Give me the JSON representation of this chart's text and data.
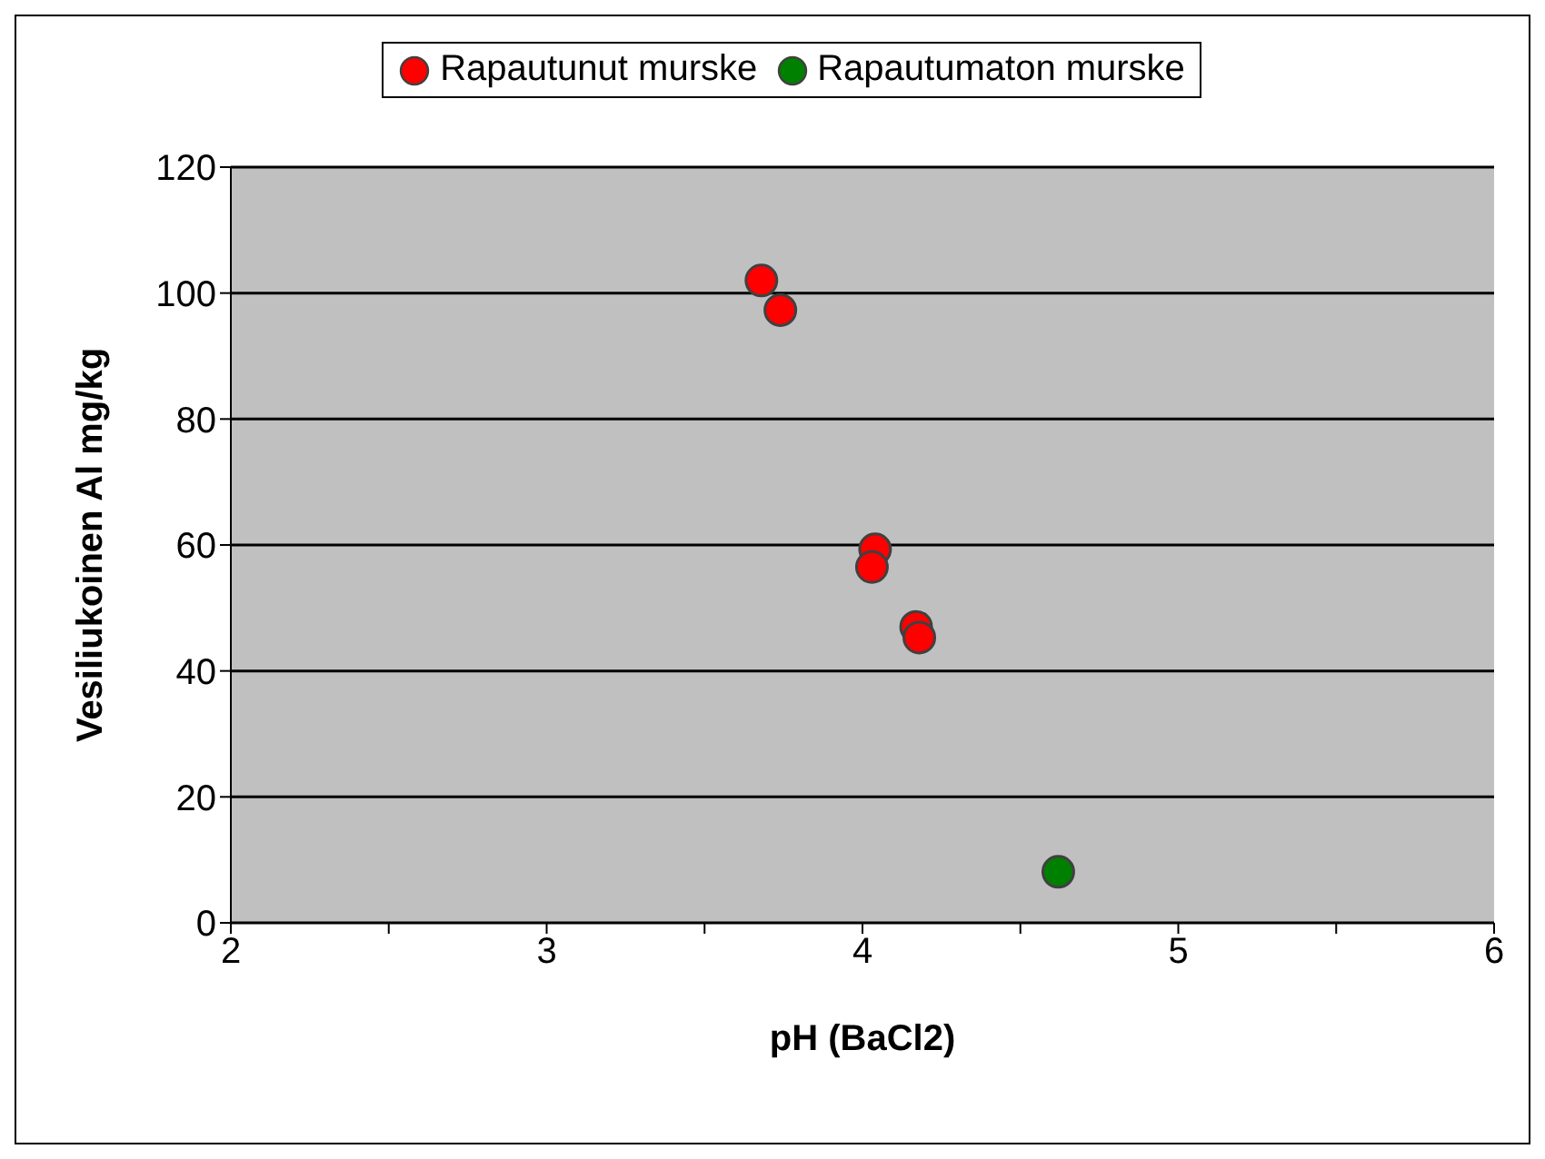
{
  "chart_data": {
    "type": "scatter",
    "xlabel": "pH (BaCl2)",
    "ylabel": "Vesiliukoinen Al mg/kg",
    "xlim": [
      2,
      6
    ],
    "xticks": [
      2,
      {
        "value": 2.5,
        "label": null
      },
      3,
      {
        "value": 3.5,
        "label": null
      },
      4,
      {
        "value": 4.5,
        "label": null
      },
      5,
      {
        "value": 5.5,
        "label": null
      },
      6
    ],
    "ylim": [
      0,
      120
    ],
    "yticks": [
      0,
      20,
      40,
      60,
      80,
      100,
      120
    ],
    "grid": "y",
    "legend": "top",
    "marker": "circle",
    "series": [
      {
        "name": "Rapautunut murske",
        "color": "#ff0000",
        "x": [
          3.68,
          3.74,
          4.04,
          4.03,
          4.17,
          4.18
        ],
        "values": [
          102,
          97.3,
          59.3,
          56.5,
          47,
          45.3
        ]
      },
      {
        "name": "Rapautumaton murske",
        "color": "#008000",
        "x": [
          4.62
        ],
        "values": [
          8.1
        ]
      }
    ]
  }
}
